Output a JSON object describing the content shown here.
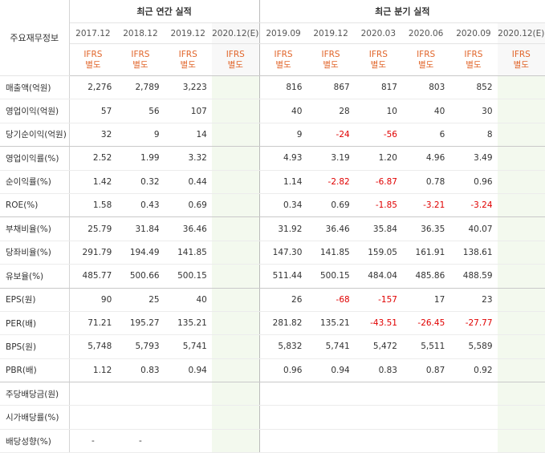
{
  "header": {
    "label_head": "주요재무정보",
    "annual_title": "최근 연간 실적",
    "quarterly_title": "최근 분기 실적",
    "annual_periods": [
      "2017.12",
      "2018.12",
      "2019.12",
      "2020.12(E)"
    ],
    "quarterly_periods": [
      "2019.09",
      "2019.12",
      "2020.03",
      "2020.06",
      "2020.09",
      "2020.12(E)"
    ],
    "ifrs_top": "IFRS",
    "ifrs_bottom": "별도"
  },
  "rows": [
    {
      "label": "매출액(억원)",
      "values": [
        "2,276",
        "2,789",
        "3,223",
        "",
        "816",
        "867",
        "817",
        "803",
        "852",
        ""
      ]
    },
    {
      "label": "영업이익(억원)",
      "values": [
        "57",
        "56",
        "107",
        "",
        "40",
        "28",
        "10",
        "40",
        "30",
        ""
      ]
    },
    {
      "label": "당기순이익(억원)",
      "values": [
        "32",
        "9",
        "14",
        "",
        "9",
        "-24",
        "-56",
        "6",
        "8",
        ""
      ]
    },
    {
      "label": "영업이익률(%)",
      "values": [
        "2.52",
        "1.99",
        "3.32",
        "",
        "4.93",
        "3.19",
        "1.20",
        "4.96",
        "3.49",
        ""
      ]
    },
    {
      "label": "순이익률(%)",
      "values": [
        "1.42",
        "0.32",
        "0.44",
        "",
        "1.14",
        "-2.82",
        "-6.87",
        "0.78",
        "0.96",
        ""
      ]
    },
    {
      "label": "ROE(%)",
      "values": [
        "1.58",
        "0.43",
        "0.69",
        "",
        "0.34",
        "0.69",
        "-1.85",
        "-3.21",
        "-3.24",
        ""
      ]
    },
    {
      "label": "부채비율(%)",
      "values": [
        "25.79",
        "31.84",
        "36.46",
        "",
        "31.92",
        "36.46",
        "35.84",
        "36.35",
        "40.07",
        ""
      ]
    },
    {
      "label": "당좌비율(%)",
      "values": [
        "291.79",
        "194.49",
        "141.85",
        "",
        "147.30",
        "141.85",
        "159.05",
        "161.91",
        "138.61",
        ""
      ]
    },
    {
      "label": "유보율(%)",
      "values": [
        "485.77",
        "500.66",
        "500.15",
        "",
        "511.44",
        "500.15",
        "484.04",
        "485.86",
        "488.59",
        ""
      ]
    },
    {
      "label": "EPS(원)",
      "values": [
        "90",
        "25",
        "40",
        "",
        "26",
        "-68",
        "-157",
        "17",
        "23",
        ""
      ]
    },
    {
      "label": "PER(배)",
      "values": [
        "71.21",
        "195.27",
        "135.21",
        "",
        "281.82",
        "135.21",
        "-43.51",
        "-26.45",
        "-27.77",
        ""
      ]
    },
    {
      "label": "BPS(원)",
      "values": [
        "5,748",
        "5,793",
        "5,741",
        "",
        "5,832",
        "5,741",
        "5,472",
        "5,511",
        "5,589",
        ""
      ]
    },
    {
      "label": "PBR(배)",
      "values": [
        "1.12",
        "0.83",
        "0.94",
        "",
        "0.96",
        "0.94",
        "0.83",
        "0.87",
        "0.92",
        ""
      ]
    },
    {
      "label": "주당배당금(원)",
      "values": [
        "",
        "",
        "",
        "",
        "",
        "",
        "",
        "",
        "",
        ""
      ]
    },
    {
      "label": "시가배당률(%)",
      "values": [
        "",
        "",
        "",
        "",
        "",
        "",
        "",
        "",
        "",
        ""
      ]
    },
    {
      "label": "배당성향(%)",
      "values": [
        "-",
        "-",
        "",
        "",
        "",
        "",
        "",
        "",
        "",
        ""
      ]
    }
  ],
  "colors": {
    "negative": "#e00000",
    "ifrs": "#e1652a",
    "estimate_bg": "#f3f9ee"
  }
}
